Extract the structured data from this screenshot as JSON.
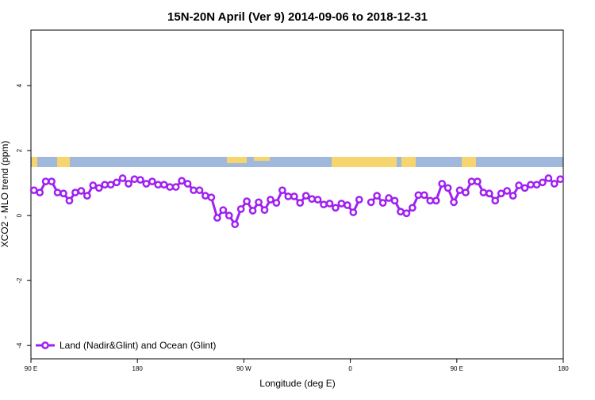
{
  "chart_data": {
    "type": "line",
    "title": "15N-20N April (Ver 9)   2014-09-06 to 2018-12-31",
    "xlabel": "Longitude (deg E)",
    "ylabel": "XCO2 - MLO trend (ppm)",
    "xlim": [
      90,
      540
    ],
    "ylim": [
      -4.41,
      5.71
    ],
    "xticks": [
      {
        "value": 90,
        "label": "90 E"
      },
      180,
      {
        "value": 270,
        "label": "90 W"
      },
      {
        "value": 360,
        "label": "0"
      },
      {
        "value": 450,
        "label": "90 E"
      },
      {
        "value": 540,
        "label": "180"
      }
    ],
    "yticks": [
      -4,
      -2,
      0,
      2,
      4
    ],
    "legend": "lower left",
    "x": [
      92.5,
      97.5,
      102.5,
      107.5,
      112.5,
      117.5,
      122.5,
      127.5,
      132.5,
      137.5,
      142.5,
      147.5,
      152.5,
      157.5,
      162.5,
      167.5,
      172.5,
      177.5,
      182.5,
      187.5,
      192.5,
      197.5,
      202.5,
      207.5,
      212.5,
      217.5,
      222.5,
      227.5,
      232.5,
      237.5,
      242.5,
      247.5,
      252.5,
      257.5,
      262.5,
      267.5,
      272.5,
      277.5,
      282.5,
      287.5,
      292.5,
      297.5,
      302.5,
      307.5,
      312.5,
      317.5,
      322.5,
      327.5,
      332.5,
      337.5,
      342.5,
      347.5,
      352.5,
      357.5,
      362.5,
      367.5,
      372.5,
      377.5,
      382.5,
      387.5,
      392.5,
      397.5,
      402.5,
      407.5,
      412.5,
      417.5,
      422.5,
      427.5,
      432.5,
      437.5,
      442.5,
      447.5,
      452.5,
      457.5,
      462.5,
      467.5,
      472.5,
      477.5,
      482.5,
      487.5,
      492.5,
      497.5,
      502.5,
      507.5,
      512.5,
      517.5,
      522.5,
      527.5,
      532.5,
      537.5
    ],
    "series": [
      {
        "name": "Land (Nadir&Glint) and Ocean (Glint)",
        "color": "#a020f0",
        "values": [
          0.78,
          0.71,
          1.05,
          1.05,
          0.71,
          0.68,
          0.46,
          0.71,
          0.76,
          0.61,
          0.93,
          0.85,
          0.95,
          0.95,
          1.02,
          1.15,
          0.98,
          1.12,
          1.1,
          0.98,
          1.05,
          0.95,
          0.95,
          0.88,
          0.88,
          1.07,
          0.98,
          0.78,
          0.78,
          0.61,
          0.56,
          -0.07,
          0.17,
          0.0,
          -0.27,
          0.2,
          0.44,
          0.15,
          0.41,
          0.17,
          0.49,
          0.39,
          0.78,
          0.59,
          0.59,
          0.39,
          0.61,
          0.51,
          0.49,
          0.34,
          0.37,
          0.24,
          0.37,
          0.32,
          0.1,
          0.49,
          null,
          0.41,
          0.61,
          0.39,
          0.54,
          0.46,
          0.12,
          0.07,
          0.24,
          0.63,
          0.63,
          0.46,
          0.46,
          0.98,
          0.85,
          0.41,
          0.78,
          0.71,
          1.05,
          1.05,
          0.71,
          0.68,
          0.46,
          0.68,
          0.76,
          0.61,
          0.93,
          0.85,
          0.95,
          0.95,
          1.02,
          1.15,
          0.98,
          1.12
        ]
      }
    ]
  }
}
